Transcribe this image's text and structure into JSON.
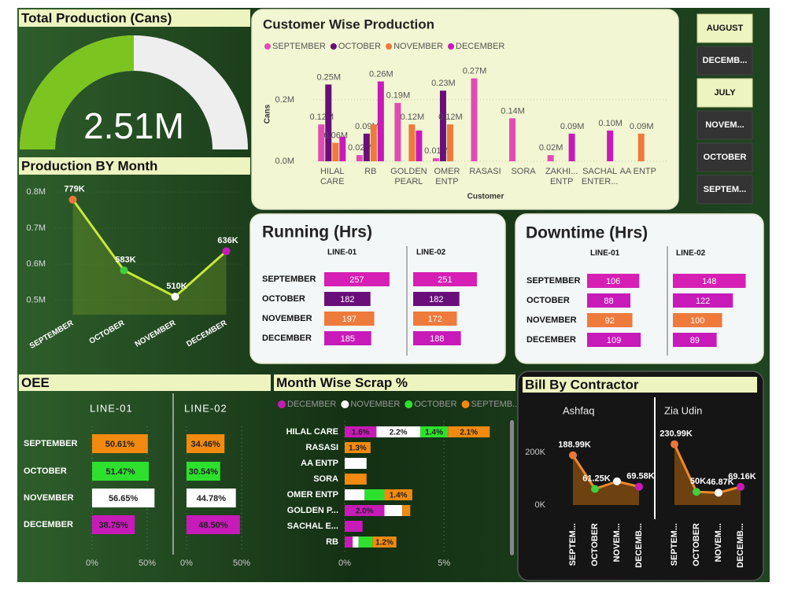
{
  "chart_data": [
    {
      "type": "gauge",
      "title": "Total Production (Cans)",
      "values": [
        2510000
      ],
      "value_labels": [
        "2.51M"
      ],
      "ylim": [
        0,
        5020000
      ],
      "color": "#7cc41f",
      "track_color": "#eeeeee"
    },
    {
      "type": "line",
      "title": "Production BY Month",
      "categories": [
        "SEPTEMBER",
        "OCTOBER",
        "NOVEMBER",
        "DECEMBER"
      ],
      "values": [
        779000,
        583000,
        510000,
        636000
      ],
      "value_labels": [
        "779K",
        "583K",
        "510K",
        "636K"
      ],
      "ylim": [
        460000,
        820000
      ],
      "yticks": [
        {
          "value": 500000,
          "label": "0.5M"
        },
        {
          "value": 600000,
          "label": "0.6M"
        },
        {
          "value": 700000,
          "label": "0.7M"
        },
        {
          "value": 800000,
          "label": "0.8M"
        }
      ],
      "line_color": "#c6e83c",
      "fill_color": "rgba(120,160,40,0.35)",
      "point_colors": [
        "#e8783a",
        "#3fcf3f",
        "#ffffff",
        "#c81ab8"
      ],
      "grid": true
    },
    {
      "type": "bar",
      "title": "Customer Wise Production",
      "x_label": "Customer",
      "y_label": "Cans",
      "categories": [
        "HILAL CARE",
        "RB",
        "GOLDEN PEARL",
        "OMER ENTP",
        "RASASI",
        "SORA",
        "ZAKHI... ENTP",
        "SACHAL ENTER...",
        "AA ENTP"
      ],
      "series": [
        {
          "name": "SEPTEMBER",
          "color": "#e04cb4",
          "values": [
            120000,
            20000,
            190000,
            10000,
            270000,
            140000,
            20000,
            null,
            null
          ],
          "value_labels": [
            "0.12M",
            "0.02M",
            "0.19M",
            "0.01M",
            "0.27M",
            "0.14M",
            "0.02M",
            null,
            null
          ]
        },
        {
          "name": "OCTOBER",
          "color": "#6a0f7a",
          "values": [
            250000,
            90000,
            null,
            230000,
            null,
            null,
            null,
            null,
            null
          ],
          "value_labels": [
            "0.25M",
            "0.09M",
            null,
            "0.23M",
            null,
            null,
            null,
            null,
            null
          ]
        },
        {
          "name": "NOVEMBER",
          "color": "#ee7a3c",
          "values": [
            60000,
            120000,
            120000,
            120000,
            null,
            null,
            null,
            null,
            90000
          ],
          "value_labels": [
            "0.06M",
            null,
            "0.12M",
            "0.12M",
            null,
            null,
            null,
            null,
            "0.09M"
          ]
        },
        {
          "name": "DECEMBER",
          "color": "#c81ab8",
          "values": [
            80000,
            260000,
            100000,
            null,
            null,
            null,
            90000,
            100000,
            null
          ],
          "value_labels": [
            null,
            "0.26M",
            null,
            null,
            null,
            null,
            "0.09M",
            "0.10M",
            null
          ]
        }
      ],
      "ylim": [
        0,
        310000
      ],
      "yticks": [
        {
          "value": 0,
          "label": "0.0M"
        },
        {
          "value": 200000,
          "label": "0.2M"
        }
      ],
      "grid": true
    },
    {
      "type": "hbar",
      "title": "Running (Hrs)",
      "categories": [
        "SEPTEMBER",
        "OCTOBER",
        "NOVEMBER",
        "DECEMBER"
      ],
      "category_colors": [
        "#d61fb4",
        "#6a0f7a",
        "#ee7a3c",
        "#c81ab8"
      ],
      "series": [
        {
          "name": "LINE-01",
          "values": [
            257,
            182,
            197,
            185
          ]
        },
        {
          "name": "LINE-02",
          "values": [
            251,
            182,
            172,
            188
          ]
        }
      ],
      "xlim": [
        0,
        310
      ]
    },
    {
      "type": "hbar",
      "title": "Downtime (Hrs)",
      "categories": [
        "SEPTEMBER",
        "OCTOBER",
        "NOVEMBER",
        "DECEMBER"
      ],
      "category_colors": [
        "#d61fb4",
        "#c81ab8",
        "#ee7a3c",
        "#c81ab8"
      ],
      "series": [
        {
          "name": "LINE-01",
          "values": [
            106,
            88,
            92,
            109
          ]
        },
        {
          "name": "LINE-02",
          "values": [
            148,
            122,
            100,
            89
          ]
        }
      ],
      "xlim": [
        0,
        160
      ]
    },
    {
      "type": "hbar",
      "title": "OEE",
      "categories": [
        "SEPTEMBER",
        "OCTOBER",
        "NOVEMBER",
        "DECEMBER"
      ],
      "category_colors": [
        "#f28a10",
        "#2ee02e",
        "#ffffff",
        "#c81ab8"
      ],
      "series": [
        {
          "name": "LINE-01",
          "values": [
            50.61,
            51.47,
            56.65,
            38.75
          ],
          "value_labels": [
            "50.61%",
            "51.47%",
            "56.65%",
            "38.75%"
          ]
        },
        {
          "name": "LINE-02",
          "values": [
            34.46,
            30.54,
            44.78,
            48.5
          ],
          "value_labels": [
            "34.46%",
            "30.54%",
            "44.78%",
            "48.50%"
          ]
        }
      ],
      "xlim": [
        0,
        60
      ],
      "xticks": [
        {
          "value": 0,
          "label": "0%"
        },
        {
          "value": 50,
          "label": "50%"
        }
      ],
      "grid": true
    },
    {
      "type": "stacked",
      "title": "Month Wise Scrap %",
      "categories": [
        "HILAL CARE",
        "RASASI",
        "AA ENTP",
        "SORA",
        "OMER ENTP",
        "GOLDEN P...",
        "SACHAL E...",
        "RB"
      ],
      "series": [
        {
          "name": "DECEMBER",
          "color": "#c81ab8",
          "values": [
            1.6,
            null,
            null,
            null,
            null,
            2.0,
            0.9,
            0.4
          ],
          "value_labels": [
            "1.6%",
            null,
            null,
            null,
            null,
            "2.0%",
            null,
            null
          ]
        },
        {
          "name": "NOVEMBER",
          "color": "#ffffff",
          "values": [
            2.2,
            null,
            1.1,
            null,
            1.0,
            0.9,
            null,
            0.3
          ],
          "value_labels": [
            "2.2%",
            null,
            null,
            null,
            null,
            null,
            null,
            null
          ]
        },
        {
          "name": "OCTOBER",
          "color": "#2ee02e",
          "values": [
            1.4,
            null,
            null,
            null,
            1.0,
            null,
            null,
            0.7
          ],
          "value_labels": [
            "1.4%",
            null,
            null,
            null,
            null,
            null,
            null,
            null
          ]
        },
        {
          "name": "SEPTEMB...",
          "color": "#f28a10",
          "values": [
            2.1,
            1.3,
            null,
            1.1,
            1.4,
            0.4,
            null,
            1.2
          ],
          "value_labels": [
            "2.1%",
            "1.3%",
            null,
            null,
            "1.4%",
            null,
            null,
            "1.2%"
          ]
        }
      ],
      "xlim": [
        0,
        8.4
      ],
      "xticks": [
        {
          "value": 0,
          "label": "0%"
        },
        {
          "value": 5,
          "label": "5%"
        }
      ],
      "grid": true
    },
    {
      "type": "line",
      "title": "Bill By Contractor",
      "categories": [
        "SEPTEM...",
        "OCTOBER",
        "NOVEM...",
        "DECEMB..."
      ],
      "series": [
        {
          "name": "Ashfaq",
          "values": [
            188990,
            61250,
            90000,
            69580
          ],
          "value_labels": [
            "188.99K",
            "61.25K",
            null,
            "69.58K"
          ]
        },
        {
          "name": "Zia Udin",
          "values": [
            230990,
            50000,
            46870,
            69160
          ],
          "value_labels": [
            "230.99K",
            "50K",
            "46.87K",
            "69.16K"
          ]
        }
      ],
      "ylim": [
        0,
        260000
      ],
      "yticks": [
        {
          "value": 0,
          "label": "0K"
        },
        {
          "value": 200000,
          "label": "200K"
        }
      ],
      "line_color": "#f08a2a",
      "fill_color": "rgba(140,80,15,0.75)",
      "point_colors": [
        "#e8783a",
        "#3fcf3f",
        "#ffffff",
        "#c81ab8"
      ],
      "grid": false
    }
  ],
  "slicer": {
    "items": [
      "AUGUST",
      "DECEMB...",
      "JULY",
      "NOVEM...",
      "OCTOBER",
      "SEPTEM..."
    ],
    "selected": [
      true,
      false,
      true,
      false,
      false,
      false
    ]
  }
}
